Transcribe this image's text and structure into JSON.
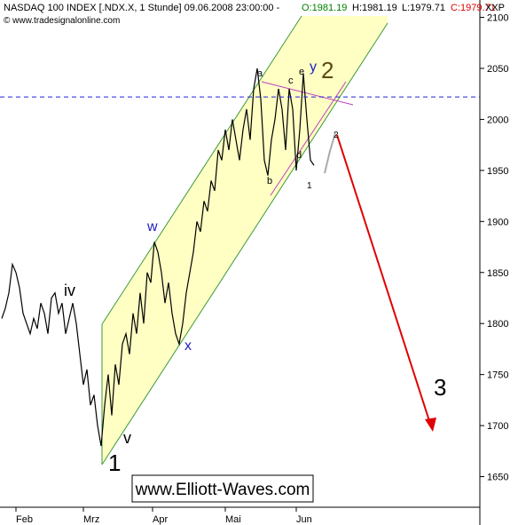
{
  "chart_data": {
    "type": "line",
    "header": {
      "symbol": "NASDAQ 100 INDEX [.NDX.X, 1 Stunde] 09.06.2008 23:00:00 -",
      "open": "O:1981.19",
      "high": "H:1981.19",
      "low": "L:1979.71",
      "close": "C:1979.71",
      "source": "© www.tradesignalonline.com",
      "corner": "XXP"
    },
    "values": [
      1805,
      1815,
      1830,
      1858,
      1850,
      1835,
      1810,
      1800,
      1790,
      1805,
      1795,
      1820,
      1810,
      1790,
      1825,
      1830,
      1810,
      1820,
      1790,
      1805,
      1820,
      1800,
      1770,
      1740,
      1755,
      1720,
      1730,
      1700,
      1680,
      1720,
      1750,
      1710,
      1760,
      1740,
      1780,
      1790,
      1770,
      1810,
      1790,
      1830,
      1800,
      1850,
      1840,
      1880,
      1870,
      1850,
      1820,
      1840,
      1810,
      1790,
      1780,
      1800,
      1830,
      1850,
      1870,
      1900,
      1890,
      1920,
      1910,
      1940,
      1930,
      1970,
      1960,
      1990,
      1970,
      2000,
      1980,
      1960,
      1990,
      2010,
      1980,
      2030,
      2050,
      2020,
      1960,
      1945,
      1980,
      2000,
      2030,
      2010,
      1970,
      2030,
      2010,
      1950,
      1990,
      2045,
      2000,
      1960,
      1955
    ],
    "color": "#000000",
    "xlim": [
      0,
      135
    ],
    "xticks": [
      {
        "value": 4,
        "label": "Feb"
      },
      {
        "value": 23,
        "label": "Mrz"
      },
      {
        "value": 42.5,
        "label": "Apr"
      },
      {
        "value": 63,
        "label": "Mai"
      },
      {
        "value": 83,
        "label": "Jun"
      }
    ],
    "ylim": [
      1620,
      2117
    ],
    "yticks": [
      1650,
      1700,
      1750,
      1800,
      1850,
      1900,
      1950,
      2000,
      2050,
      2100
    ],
    "hline": 2022,
    "annotations": {
      "a": "a",
      "b": "b",
      "c": "c",
      "d": "d",
      "e": "e",
      "y": "y",
      "big2": "2",
      "w": "w",
      "x": "x",
      "iv": "iv",
      "v": "v",
      "big1": "1",
      "big3": "3",
      "small1": "1",
      "small2": "2"
    },
    "watermark": "www.Elliott-Waves.com"
  }
}
